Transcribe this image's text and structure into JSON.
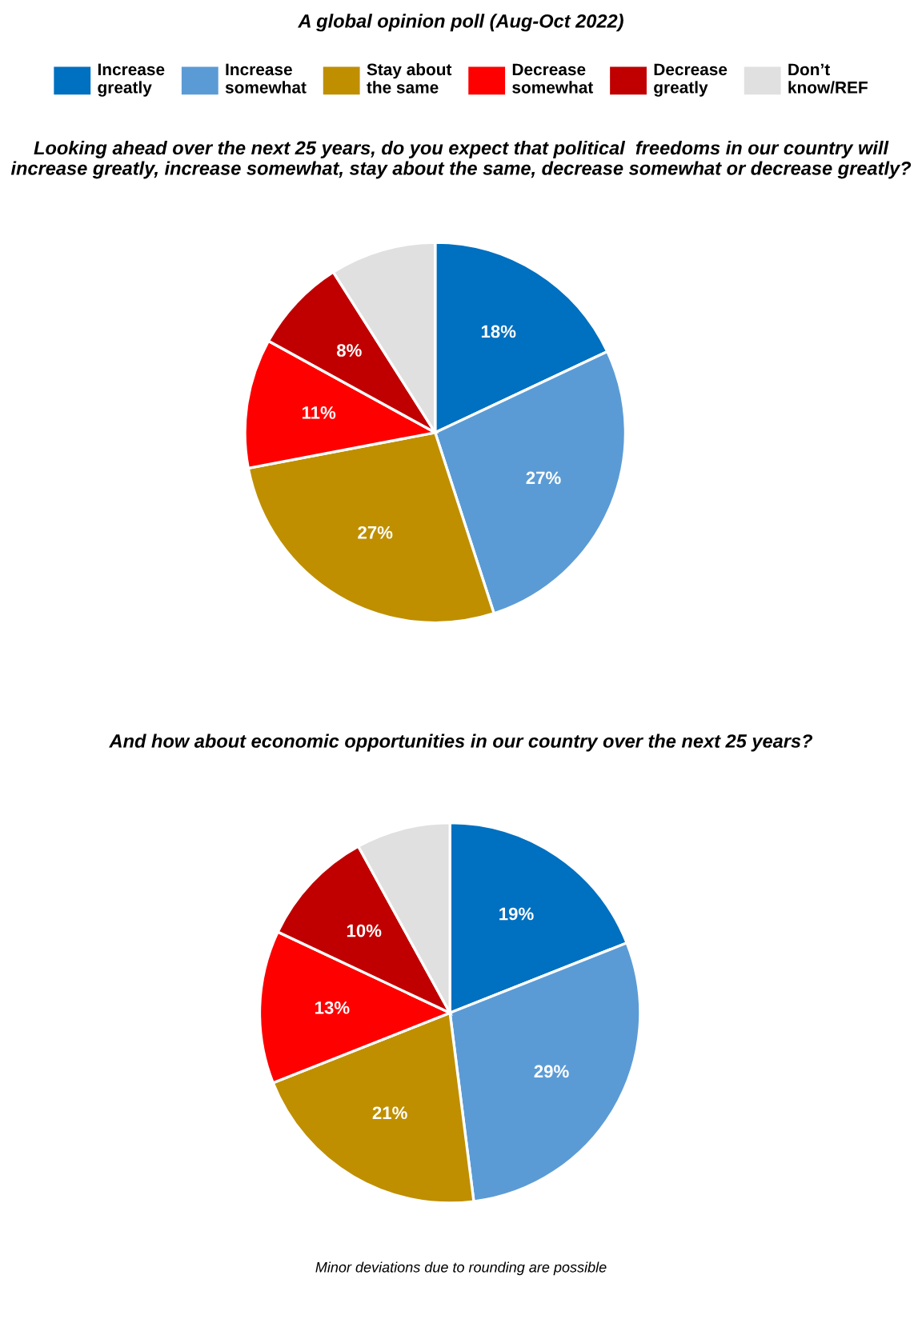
{
  "chart_data": [
    {
      "type": "pie",
      "title": "A global opinion poll (Aug-Oct 2022)",
      "subtitle": "Looking ahead over the next 25 years, do you expect that political  freedoms in our country will increase greatly, increase somewhat, stay about the same, decrease somewhat or decrease greatly?",
      "categories": [
        "Increase\ngreatly",
        "Increase\nsomewhat",
        "Stay about\nthe same",
        "Decrease\nsomewhat",
        "Decrease\ngreatly",
        "Don’t\nknow/REF"
      ],
      "values": [
        18,
        27,
        27,
        11,
        8,
        9
      ],
      "value_labels": [
        "18%",
        "27%",
        "27%",
        "11%",
        "8%",
        null
      ],
      "colors": [
        "#0070c0",
        "#5b9bd5",
        "#bf8f00",
        "#ff0000",
        "#c00000",
        "#e0e0e0"
      ],
      "legend": "top"
    },
    {
      "type": "pie",
      "subtitle": "And how about economic opportunities in our country over the next 25 years?",
      "categories": [
        null,
        null,
        null,
        null,
        null,
        null
      ],
      "values": [
        19,
        29,
        21,
        13,
        10,
        8
      ],
      "value_labels": [
        "19%",
        "29%",
        "21%",
        "13%",
        "10%",
        null
      ],
      "colors": [
        "#0070c0",
        "#5b9bd5",
        "#bf8f00",
        "#ff0000",
        "#c00000",
        "#e0e0e0"
      ],
      "annotations": [
        "Minor deviations due to rounding are possible"
      ]
    }
  ]
}
